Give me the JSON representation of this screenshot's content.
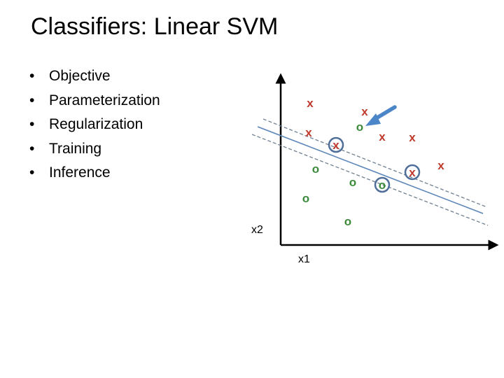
{
  "slide": {
    "title": "Classifiers: Linear SVM",
    "bullets": [
      "Objective",
      "Parameterization",
      "Regularization",
      "Training",
      "Inference"
    ]
  },
  "diagram": {
    "x_axis_label": "x1",
    "y_axis_label": "x2",
    "class_x_symbol": "x",
    "class_o_symbol": "o",
    "colors": {
      "x_marker": "#c0392b",
      "o_marker": "#3a8a3a",
      "support_vector_ring": "#4f6f9a",
      "boundary": "#5b86b8",
      "margin": "#6f7f8f",
      "arrow": "#4a86c8",
      "axis": "#000000"
    }
  }
}
